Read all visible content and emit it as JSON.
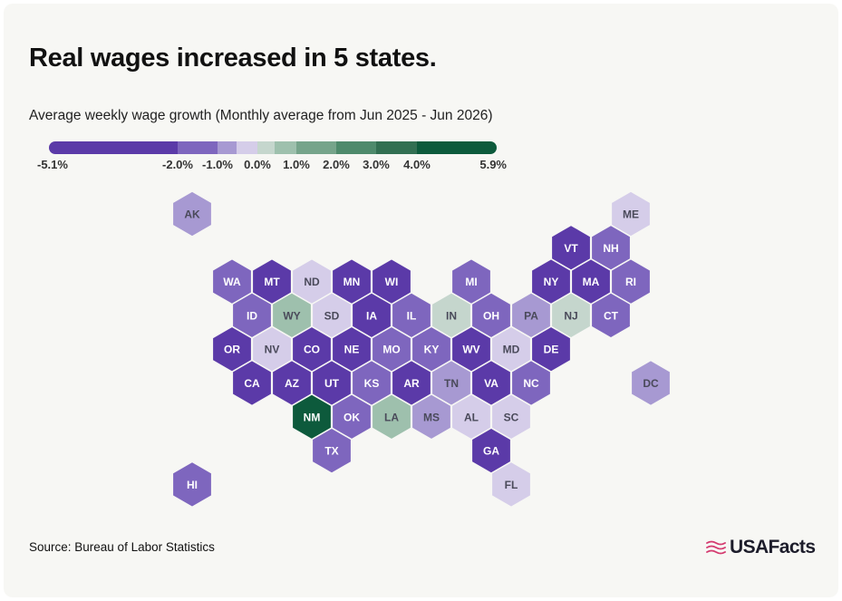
{
  "title": "Real wages increased in 5 states.",
  "subtitle": "Average weekly wage growth (Monthly average from Jun 2025 - Jun 2026)",
  "source": "Source: Bureau of Labor Statistics",
  "brand": {
    "name": "USAFacts",
    "logo_icon": "us-flag-icon",
    "logo_color": "#d43a6f"
  },
  "colors": {
    "card_bg": "#f7f7f4",
    "hex_stroke": "#f7f7f4",
    "label_dark_bg": "#ffffff",
    "label_light_bg": "#4a4a5a"
  },
  "chart_data": {
    "type": "heatmap",
    "title": "Real wages increased in 5 states.",
    "subtitle": "Average weekly wage growth (Monthly average from Jun 2025 - Jun 2026)",
    "legend": {
      "breaks": [
        "-5.1%",
        "-2.0%",
        "-1.0%",
        "0.0%",
        "1.0%",
        "2.0%",
        "3.0%",
        "4.0%",
        "5.9%"
      ],
      "colors": [
        "#5b3aa8",
        "#7e66be",
        "#a799d2",
        "#d5cde9",
        "#c5d6cd",
        "#9ec0ad",
        "#76a48b",
        "#4e8a6c",
        "#326f52",
        "#0d5a3c"
      ]
    },
    "states": [
      {
        "abbr": "AK",
        "color": "#a799d2"
      },
      {
        "abbr": "ME",
        "color": "#d5cde9"
      },
      {
        "abbr": "VT",
        "color": "#5b3aa8"
      },
      {
        "abbr": "NH",
        "color": "#7e66be"
      },
      {
        "abbr": "WA",
        "color": "#7e66be"
      },
      {
        "abbr": "MT",
        "color": "#5b3aa8"
      },
      {
        "abbr": "ND",
        "color": "#d5cde9"
      },
      {
        "abbr": "MN",
        "color": "#5b3aa8"
      },
      {
        "abbr": "WI",
        "color": "#5b3aa8"
      },
      {
        "abbr": "MI",
        "color": "#7e66be"
      },
      {
        "abbr": "NY",
        "color": "#5b3aa8"
      },
      {
        "abbr": "MA",
        "color": "#5b3aa8"
      },
      {
        "abbr": "RI",
        "color": "#7e66be"
      },
      {
        "abbr": "ID",
        "color": "#7e66be"
      },
      {
        "abbr": "WY",
        "color": "#9ec0ad"
      },
      {
        "abbr": "SD",
        "color": "#d5cde9"
      },
      {
        "abbr": "IA",
        "color": "#5b3aa8"
      },
      {
        "abbr": "IL",
        "color": "#7e66be"
      },
      {
        "abbr": "IN",
        "color": "#c5d6cd"
      },
      {
        "abbr": "OH",
        "color": "#7e66be"
      },
      {
        "abbr": "PA",
        "color": "#a799d2"
      },
      {
        "abbr": "NJ",
        "color": "#c5d6cd"
      },
      {
        "abbr": "CT",
        "color": "#7e66be"
      },
      {
        "abbr": "OR",
        "color": "#5b3aa8"
      },
      {
        "abbr": "NV",
        "color": "#d5cde9"
      },
      {
        "abbr": "CO",
        "color": "#5b3aa8"
      },
      {
        "abbr": "NE",
        "color": "#5b3aa8"
      },
      {
        "abbr": "MO",
        "color": "#7e66be"
      },
      {
        "abbr": "KY",
        "color": "#7e66be"
      },
      {
        "abbr": "WV",
        "color": "#5b3aa8"
      },
      {
        "abbr": "MD",
        "color": "#d5cde9"
      },
      {
        "abbr": "DE",
        "color": "#5b3aa8"
      },
      {
        "abbr": "CA",
        "color": "#5b3aa8"
      },
      {
        "abbr": "AZ",
        "color": "#5b3aa8"
      },
      {
        "abbr": "UT",
        "color": "#5b3aa8"
      },
      {
        "abbr": "KS",
        "color": "#7e66be"
      },
      {
        "abbr": "AR",
        "color": "#5b3aa8"
      },
      {
        "abbr": "TN",
        "color": "#a799d2"
      },
      {
        "abbr": "VA",
        "color": "#5b3aa8"
      },
      {
        "abbr": "NC",
        "color": "#7e66be"
      },
      {
        "abbr": "DC",
        "color": "#a799d2"
      },
      {
        "abbr": "NM",
        "color": "#0d5a3c"
      },
      {
        "abbr": "OK",
        "color": "#7e66be"
      },
      {
        "abbr": "LA",
        "color": "#9ec0ad"
      },
      {
        "abbr": "MS",
        "color": "#a799d2"
      },
      {
        "abbr": "AL",
        "color": "#d5cde9"
      },
      {
        "abbr": "SC",
        "color": "#d5cde9"
      },
      {
        "abbr": "TX",
        "color": "#7e66be"
      },
      {
        "abbr": "GA",
        "color": "#5b3aa8"
      },
      {
        "abbr": "HI",
        "color": "#7e66be"
      },
      {
        "abbr": "FL",
        "color": "#d5cde9"
      }
    ]
  }
}
